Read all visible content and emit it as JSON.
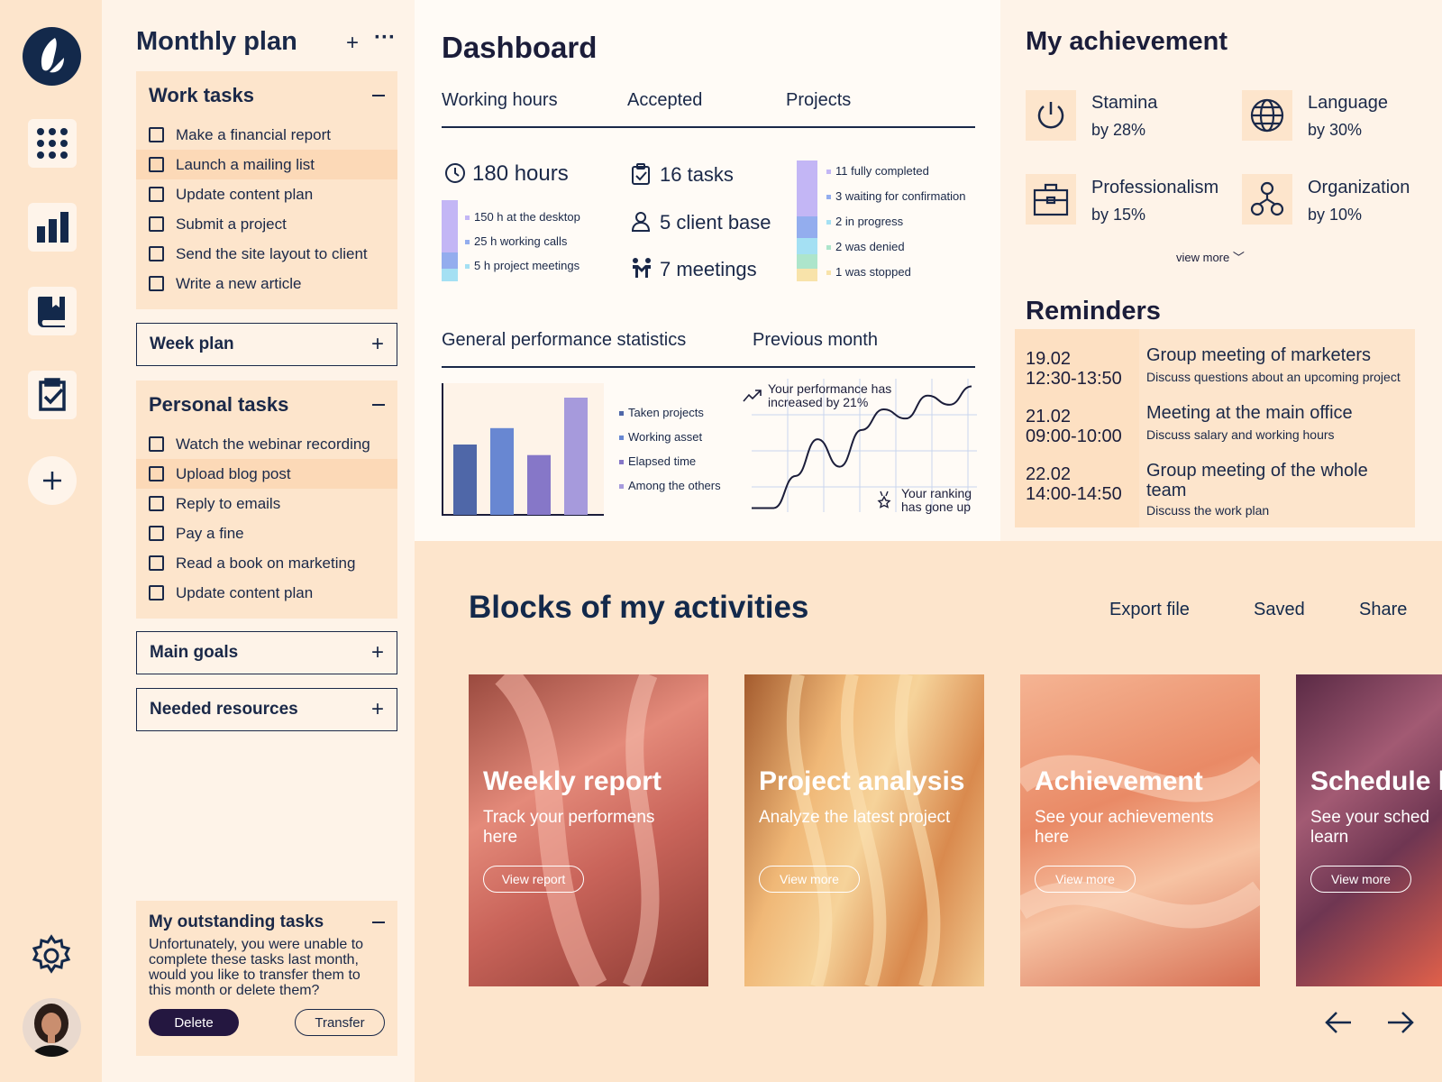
{
  "plan": {
    "title": "Monthly plan",
    "work": {
      "title": "Work tasks",
      "items": [
        "Make a financial report",
        "Launch a mailing list",
        "Update content plan",
        "Submit a project",
        "Send the site layout to client",
        "Write a new article"
      ]
    },
    "week": "Week plan",
    "personal": {
      "title": "Personal tasks",
      "items": [
        "Watch the webinar recording",
        "Upload blog post",
        "Reply to emails",
        "Pay a fine",
        "Read a book on marketing",
        "Update content plan"
      ]
    },
    "goals": "Main goals",
    "resources": "Needed resources",
    "outstanding": {
      "title": "My outstanding tasks",
      "text": "Unfortunately, you were unable to complete these tasks last month, would you like to transfer them to this month or delete them?",
      "delete": "Delete",
      "transfer": "Transfer"
    }
  },
  "dashboard": {
    "title": "Dashboard",
    "tabs": [
      "Working hours",
      "Accepted",
      "Projects"
    ],
    "hours": {
      "value": "180 hours",
      "items": [
        "150 h at the desktop",
        "25 h working calls",
        "5 h project meetings"
      ]
    },
    "accepted": [
      "16 tasks",
      "5 client base",
      "7 meetings"
    ],
    "projects": [
      "11 fully completed",
      "3 waiting for confirmation",
      "2 in progress",
      "2 was denied",
      "1 was stopped"
    ],
    "stats_tabs": [
      "General performance statistics",
      "Previous month"
    ],
    "legend": [
      "Taken projects",
      "Working asset",
      "Elapsed time",
      "Among the others"
    ],
    "perf_note": "Your performance has increased by 21%",
    "rank_note": "Your ranking has gone up"
  },
  "chart_data": [
    {
      "type": "bar",
      "categories": [
        "Taken projects",
        "Working asset",
        "Elapsed time",
        "Among the others"
      ],
      "values": [
        60,
        74,
        51,
        100
      ],
      "colors": [
        "#4f67a8",
        "#6887d2",
        "#8677c8",
        "#a69adc"
      ]
    },
    {
      "type": "line",
      "x": [
        0,
        1,
        2,
        3,
        4,
        5,
        6,
        7,
        8,
        9,
        10
      ],
      "values": [
        2,
        2,
        30,
        62,
        38,
        70,
        88,
        80,
        100,
        92,
        108
      ]
    }
  ],
  "achievement": {
    "title": "My achievement",
    "items": [
      {
        "name": "Stamina",
        "value": "by 28%",
        "icon": "power-icon"
      },
      {
        "name": "Language",
        "value": "by 30%",
        "icon": "globe-icon"
      },
      {
        "name": "Professionalism",
        "value": "by 15%",
        "icon": "briefcase-icon"
      },
      {
        "name": "Organization",
        "value": "by 10%",
        "icon": "org-icon"
      }
    ],
    "more": "view more"
  },
  "reminders": {
    "title": "Reminders",
    "items": [
      {
        "date": "19.02",
        "time": "12:30-13:50",
        "title": "Group meeting of marketers",
        "desc": "Discuss questions about an upcoming project"
      },
      {
        "date": "21.02",
        "time": "09:00-10:00",
        "title": "Meeting at the main office",
        "desc": "Discuss salary and working hours"
      },
      {
        "date": "22.02",
        "time": "14:00-14:50",
        "title": "Group meeting of the whole team",
        "desc": "Discuss the work plan"
      }
    ]
  },
  "blocks": {
    "title": "Blocks of my activities",
    "actions": [
      "Export file",
      "Saved",
      "Share"
    ],
    "cards": [
      {
        "title": "Weekly report",
        "sub": "Track your performens here",
        "btn": "View report"
      },
      {
        "title": "Project analysis",
        "sub": "Analyze the latest project",
        "btn": "View more"
      },
      {
        "title": "Achievement",
        "sub": "See your achievements here",
        "btn": "View more"
      },
      {
        "title": "Schedule l",
        "sub": "See your sched learn",
        "btn": "View more"
      }
    ]
  }
}
